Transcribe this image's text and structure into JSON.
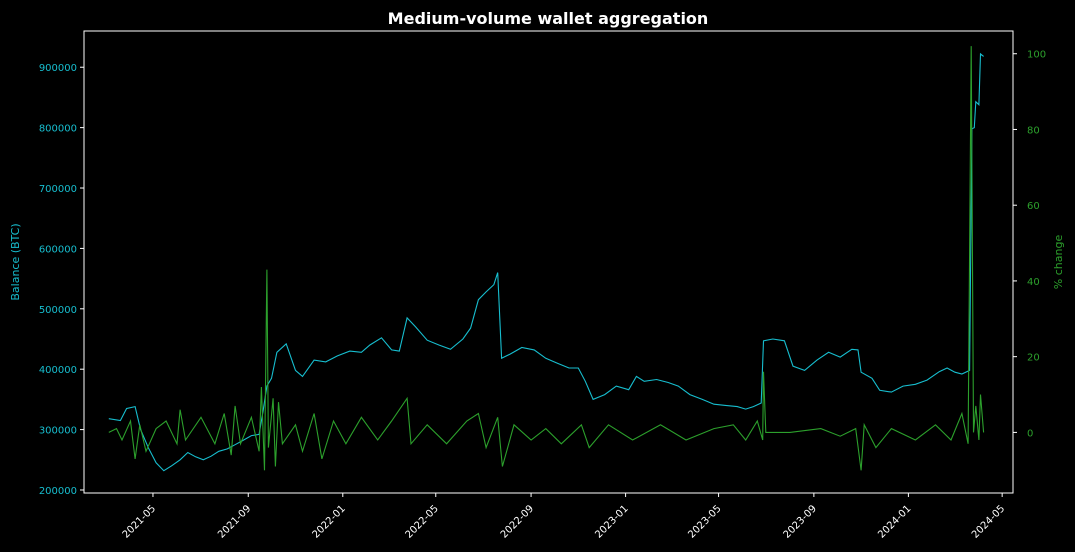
{
  "chart_data": {
    "type": "line",
    "title": "Medium-volume wallet aggregation",
    "xlabel": "",
    "ylabel_left": "Balance (BTC)",
    "ylabel_right": "% change",
    "x_ticks": [
      "2021-05",
      "2021-09",
      "2022-01",
      "2022-05",
      "2022-09",
      "2023-01",
      "2023-05",
      "2023-09",
      "2024-01",
      "2024-05"
    ],
    "y_left_ticks": [
      200000,
      300000,
      400000,
      500000,
      600000,
      700000,
      800000,
      900000
    ],
    "y_right_ticks": [
      0,
      20,
      40,
      60,
      80,
      100
    ],
    "y_left_range": [
      195000,
      960000
    ],
    "y_right_range": [
      -16,
      106
    ],
    "x_range": [
      "2021-02-01",
      "2024-05-15"
    ],
    "grid": false,
    "colors": {
      "balance": "#17becf",
      "pct_change": "#2ca02c",
      "axes": "#ffffff",
      "background": "#000000"
    },
    "series": [
      {
        "axis": "left",
        "color": "#17becf",
        "points": [
          [
            "2021-03-05",
            318000
          ],
          [
            "2021-03-20",
            315000
          ],
          [
            "2021-03-28",
            335000
          ],
          [
            "2021-04-08",
            338000
          ],
          [
            "2021-04-15",
            300000
          ],
          [
            "2021-04-25",
            270000
          ],
          [
            "2021-05-05",
            245000
          ],
          [
            "2021-05-15",
            232000
          ],
          [
            "2021-05-25",
            240000
          ],
          [
            "2021-06-05",
            250000
          ],
          [
            "2021-06-15",
            262000
          ],
          [
            "2021-06-25",
            255000
          ],
          [
            "2021-07-05",
            250000
          ],
          [
            "2021-07-15",
            256000
          ],
          [
            "2021-07-25",
            264000
          ],
          [
            "2021-08-05",
            268000
          ],
          [
            "2021-08-15",
            275000
          ],
          [
            "2021-08-25",
            282000
          ],
          [
            "2021-09-05",
            290000
          ],
          [
            "2021-09-15",
            292000
          ],
          [
            "2021-09-20",
            330000
          ],
          [
            "2021-09-25",
            372000
          ],
          [
            "2021-10-01",
            385000
          ],
          [
            "2021-10-08",
            428000
          ],
          [
            "2021-10-20",
            442000
          ],
          [
            "2021-11-01",
            398000
          ],
          [
            "2021-11-10",
            388000
          ],
          [
            "2021-11-25",
            415000
          ],
          [
            "2021-12-10",
            412000
          ],
          [
            "2021-12-25",
            422000
          ],
          [
            "2022-01-10",
            430000
          ],
          [
            "2022-01-25",
            428000
          ],
          [
            "2022-02-05",
            440000
          ],
          [
            "2022-02-20",
            452000
          ],
          [
            "2022-03-05",
            432000
          ],
          [
            "2022-03-15",
            430000
          ],
          [
            "2022-03-25",
            485000
          ],
          [
            "2022-04-05",
            470000
          ],
          [
            "2022-04-20",
            448000
          ],
          [
            "2022-05-05",
            440000
          ],
          [
            "2022-05-20",
            433000
          ],
          [
            "2022-06-05",
            450000
          ],
          [
            "2022-06-15",
            468000
          ],
          [
            "2022-06-25",
            515000
          ],
          [
            "2022-07-05",
            528000
          ],
          [
            "2022-07-15",
            540000
          ],
          [
            "2022-07-20",
            560000
          ],
          [
            "2022-07-25",
            418000
          ],
          [
            "2022-08-05",
            425000
          ],
          [
            "2022-08-20",
            436000
          ],
          [
            "2022-09-05",
            432000
          ],
          [
            "2022-09-20",
            418000
          ],
          [
            "2022-10-05",
            410000
          ],
          [
            "2022-10-20",
            402000
          ],
          [
            "2022-11-01",
            402000
          ],
          [
            "2022-11-10",
            380000
          ],
          [
            "2022-11-20",
            350000
          ],
          [
            "2022-12-05",
            358000
          ],
          [
            "2022-12-20",
            372000
          ],
          [
            "2023-01-05",
            366000
          ],
          [
            "2023-01-15",
            388000
          ],
          [
            "2023-01-25",
            380000
          ],
          [
            "2023-02-10",
            383000
          ],
          [
            "2023-02-25",
            378000
          ],
          [
            "2023-03-10",
            372000
          ],
          [
            "2023-03-25",
            358000
          ],
          [
            "2023-04-10",
            350000
          ],
          [
            "2023-04-25",
            342000
          ],
          [
            "2023-05-10",
            340000
          ],
          [
            "2023-05-25",
            338000
          ],
          [
            "2023-06-05",
            334000
          ],
          [
            "2023-06-15",
            338000
          ],
          [
            "2023-06-25",
            344000
          ],
          [
            "2023-06-28",
            447000
          ],
          [
            "2023-07-10",
            450000
          ],
          [
            "2023-07-25",
            447000
          ],
          [
            "2023-08-05",
            405000
          ],
          [
            "2023-08-20",
            398000
          ],
          [
            "2023-09-05",
            415000
          ],
          [
            "2023-09-20",
            428000
          ],
          [
            "2023-10-05",
            420000
          ],
          [
            "2023-10-20",
            433000
          ],
          [
            "2023-10-28",
            432000
          ],
          [
            "2023-11-01",
            395000
          ],
          [
            "2023-11-15",
            385000
          ],
          [
            "2023-11-25",
            365000
          ],
          [
            "2023-12-10",
            362000
          ],
          [
            "2023-12-25",
            372000
          ],
          [
            "2024-01-10",
            375000
          ],
          [
            "2024-01-25",
            382000
          ],
          [
            "2024-02-10",
            396000
          ],
          [
            "2024-02-20",
            402000
          ],
          [
            "2024-03-01",
            395000
          ],
          [
            "2024-03-10",
            392000
          ],
          [
            "2024-03-20",
            398000
          ],
          [
            "2024-03-23",
            798000
          ],
          [
            "2024-03-26",
            800000
          ],
          [
            "2024-03-28",
            843000
          ],
          [
            "2024-04-01",
            838000
          ],
          [
            "2024-04-03",
            922000
          ],
          [
            "2024-04-07",
            918000
          ]
        ]
      },
      {
        "axis": "right",
        "color": "#2ca02c",
        "points": [
          [
            "2021-03-05",
            0
          ],
          [
            "2021-03-15",
            1
          ],
          [
            "2021-03-22",
            -2
          ],
          [
            "2021-04-02",
            3
          ],
          [
            "2021-04-08",
            -7
          ],
          [
            "2021-04-14",
            2
          ],
          [
            "2021-04-22",
            -5
          ],
          [
            "2021-05-05",
            1
          ],
          [
            "2021-05-18",
            3
          ],
          [
            "2021-06-01",
            -3
          ],
          [
            "2021-06-05",
            6
          ],
          [
            "2021-06-12",
            -2
          ],
          [
            "2021-07-02",
            4
          ],
          [
            "2021-07-20",
            -3
          ],
          [
            "2021-08-01",
            5
          ],
          [
            "2021-08-10",
            -6
          ],
          [
            "2021-08-15",
            7
          ],
          [
            "2021-08-22",
            -3
          ],
          [
            "2021-09-05",
            4
          ],
          [
            "2021-09-15",
            -5
          ],
          [
            "2021-09-18",
            12
          ],
          [
            "2021-09-22",
            -10
          ],
          [
            "2021-09-25",
            43
          ],
          [
            "2021-09-27",
            -4
          ],
          [
            "2021-10-03",
            9
          ],
          [
            "2021-10-06",
            -9
          ],
          [
            "2021-10-10",
            8
          ],
          [
            "2021-10-15",
            -3
          ],
          [
            "2021-11-01",
            2
          ],
          [
            "2021-11-10",
            -5
          ],
          [
            "2021-11-25",
            5
          ],
          [
            "2021-12-05",
            -7
          ],
          [
            "2021-12-20",
            3
          ],
          [
            "2022-01-05",
            -3
          ],
          [
            "2022-01-25",
            4
          ],
          [
            "2022-02-15",
            -2
          ],
          [
            "2022-03-05",
            3
          ],
          [
            "2022-03-25",
            9
          ],
          [
            "2022-03-30",
            -3
          ],
          [
            "2022-04-20",
            2
          ],
          [
            "2022-05-15",
            -3
          ],
          [
            "2022-06-10",
            3
          ],
          [
            "2022-06-25",
            5
          ],
          [
            "2022-07-05",
            -4
          ],
          [
            "2022-07-20",
            4
          ],
          [
            "2022-07-26",
            -9
          ],
          [
            "2022-08-10",
            2
          ],
          [
            "2022-09-01",
            -2
          ],
          [
            "2022-09-20",
            1
          ],
          [
            "2022-10-10",
            -3
          ],
          [
            "2022-11-05",
            2
          ],
          [
            "2022-11-15",
            -4
          ],
          [
            "2022-12-10",
            2
          ],
          [
            "2023-01-10",
            -2
          ],
          [
            "2023-02-15",
            2
          ],
          [
            "2023-03-20",
            -2
          ],
          [
            "2023-04-25",
            1
          ],
          [
            "2023-05-20",
            2
          ],
          [
            "2023-06-05",
            -2
          ],
          [
            "2023-06-20",
            3
          ],
          [
            "2023-06-27",
            -2
          ],
          [
            "2023-06-28",
            16
          ],
          [
            "2023-07-01",
            0
          ],
          [
            "2023-08-01",
            0
          ],
          [
            "2023-09-10",
            1
          ],
          [
            "2023-10-05",
            -1
          ],
          [
            "2023-10-25",
            1
          ],
          [
            "2023-11-01",
            -10
          ],
          [
            "2023-11-05",
            2
          ],
          [
            "2023-11-20",
            -4
          ],
          [
            "2023-12-10",
            1
          ],
          [
            "2024-01-10",
            -2
          ],
          [
            "2024-02-05",
            2
          ],
          [
            "2024-02-25",
            -2
          ],
          [
            "2024-03-10",
            5
          ],
          [
            "2024-03-18",
            -3
          ],
          [
            "2024-03-22",
            102
          ],
          [
            "2024-03-25",
            0
          ],
          [
            "2024-03-28",
            7
          ],
          [
            "2024-04-01",
            -2
          ],
          [
            "2024-04-03",
            10
          ],
          [
            "2024-04-07",
            0
          ]
        ]
      }
    ]
  }
}
